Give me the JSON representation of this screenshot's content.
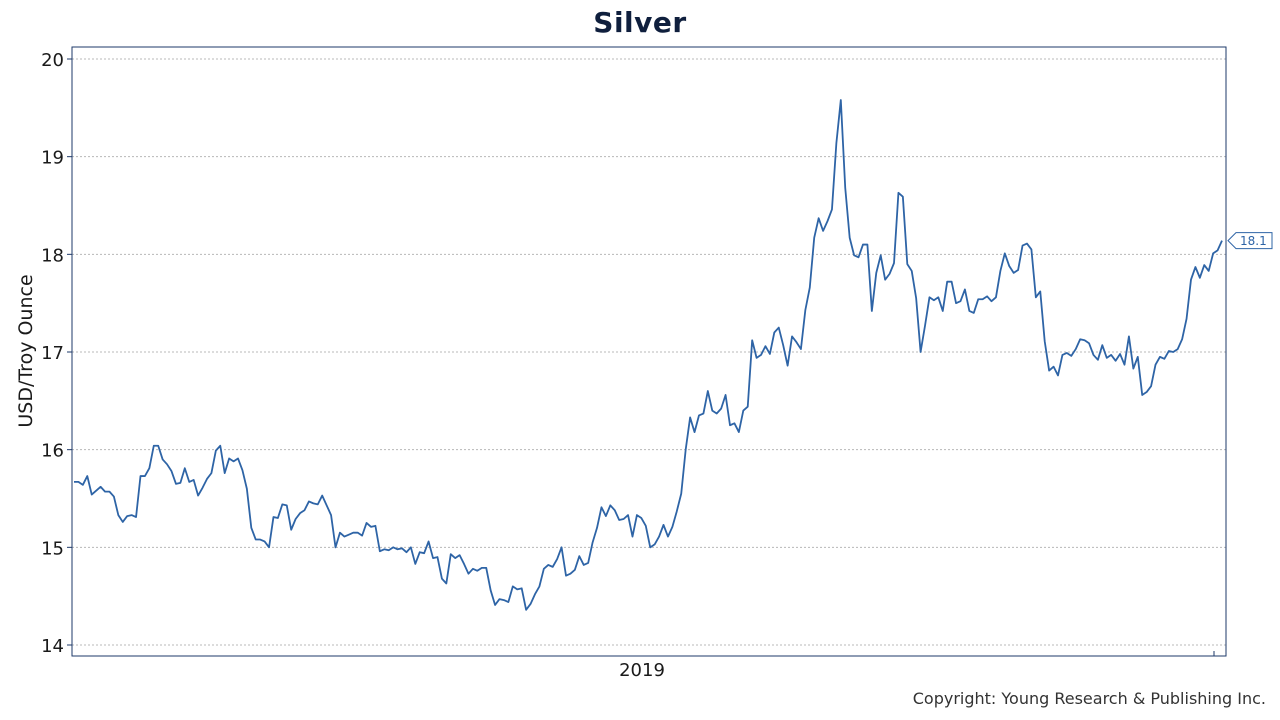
{
  "chart_data": {
    "type": "line",
    "title": "Silver",
    "ylabel": "USD/Troy Ounce",
    "xlabel": "",
    "ylim": [
      14,
      20
    ],
    "yticks": [
      14,
      15,
      16,
      17,
      18,
      19,
      20
    ],
    "x_tick_labels": [
      "2019"
    ],
    "grid": true,
    "line_color": "#2e64a6",
    "last_value_label": "18.1",
    "series": [
      {
        "values": [
          15.67,
          15.67,
          15.64,
          15.73,
          15.54,
          15.58,
          15.62,
          15.57,
          15.57,
          15.52,
          15.33,
          15.26,
          15.32,
          15.33,
          15.31,
          15.73,
          15.73,
          15.81,
          16.04,
          16.04,
          15.9,
          15.85,
          15.78,
          15.65,
          15.66,
          15.81,
          15.67,
          15.69,
          15.53,
          15.61,
          15.7,
          15.76,
          15.99,
          16.04,
          15.76,
          15.91,
          15.88,
          15.91,
          15.79,
          15.6,
          15.2,
          15.08,
          15.08,
          15.06,
          15.0,
          15.31,
          15.3,
          15.44,
          15.43,
          15.18,
          15.29,
          15.35,
          15.38,
          15.47,
          15.45,
          15.44,
          15.53,
          15.43,
          15.33,
          15.0,
          15.15,
          15.11,
          15.13,
          15.15,
          15.15,
          15.12,
          15.25,
          15.21,
          15.22,
          14.96,
          14.98,
          14.97,
          15.0,
          14.98,
          14.99,
          14.95,
          15.0,
          14.83,
          14.95,
          14.94,
          15.06,
          14.89,
          14.9,
          14.68,
          14.63,
          14.93,
          14.89,
          14.92,
          14.83,
          14.73,
          14.78,
          14.76,
          14.79,
          14.79,
          14.56,
          14.41,
          14.47,
          14.46,
          14.44,
          14.6,
          14.57,
          14.58,
          14.36,
          14.42,
          14.52,
          14.6,
          14.78,
          14.82,
          14.8,
          14.88,
          15.0,
          14.71,
          14.73,
          14.77,
          14.91,
          14.82,
          14.84,
          15.05,
          15.2,
          15.41,
          15.32,
          15.43,
          15.38,
          15.28,
          15.29,
          15.33,
          15.11,
          15.33,
          15.3,
          15.22,
          15.0,
          15.03,
          15.11,
          15.23,
          15.11,
          15.21,
          15.37,
          15.55,
          16.0,
          16.33,
          16.18,
          16.35,
          16.37,
          16.6,
          16.4,
          16.37,
          16.42,
          16.56,
          16.25,
          16.27,
          16.18,
          16.4,
          16.44,
          17.12,
          16.94,
          16.97,
          17.06,
          16.98,
          17.2,
          17.25,
          17.07,
          16.86,
          17.16,
          17.1,
          17.03,
          17.43,
          17.66,
          18.17,
          18.37,
          18.24,
          18.34,
          18.46,
          19.14,
          19.58,
          18.68,
          18.17,
          17.99,
          17.97,
          18.1,
          18.1,
          17.42,
          17.81,
          17.99,
          17.74,
          17.8,
          17.91,
          18.63,
          18.59,
          17.9,
          17.83,
          17.55,
          17.0,
          17.27,
          17.56,
          17.53,
          17.56,
          17.42,
          17.72,
          17.72,
          17.5,
          17.52,
          17.64,
          17.42,
          17.4,
          17.54,
          17.54,
          17.57,
          17.52,
          17.56,
          17.83,
          18.01,
          17.88,
          17.81,
          17.84,
          18.09,
          18.11,
          18.05,
          17.56,
          17.62,
          17.11,
          16.81,
          16.85,
          16.76,
          16.97,
          16.99,
          16.96,
          17.03,
          17.13,
          17.12,
          17.09,
          16.97,
          16.92,
          17.07,
          16.94,
          16.97,
          16.91,
          16.98,
          16.87,
          17.16,
          16.83,
          16.95,
          16.56,
          16.59,
          16.65,
          16.87,
          16.95,
          16.93,
          17.01,
          17.0,
          17.03,
          17.13,
          17.34,
          17.74,
          17.87,
          17.76,
          17.89,
          17.83,
          18.01,
          18.04,
          18.14
        ]
      }
    ]
  },
  "copyright": "Copyright: Young Research & Publishing Inc."
}
